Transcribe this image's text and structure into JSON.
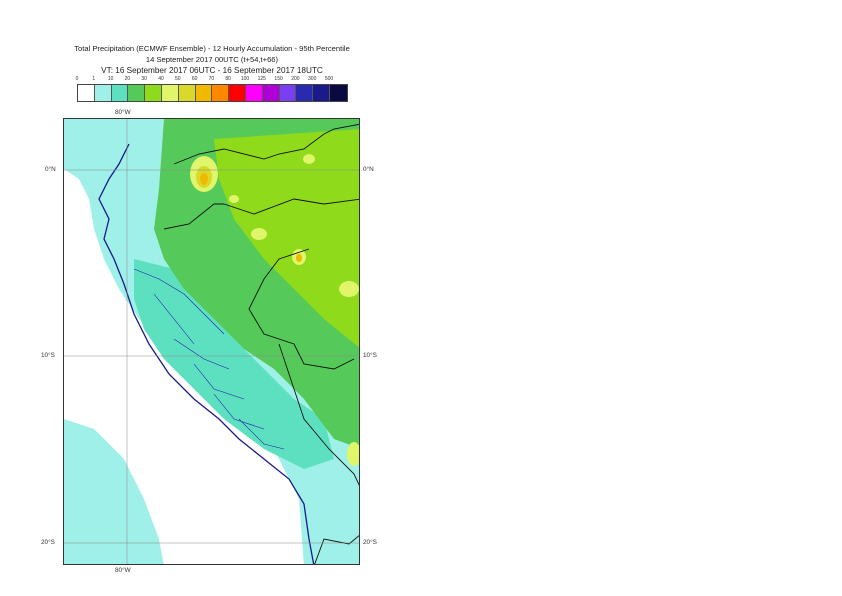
{
  "title": {
    "line1": "Total Precipitation (ECMWF Ensemble) - 12 Hourly Accumulation - 95th Percentile",
    "line2": "14 September 2017 00UTC (t+54,t+66)",
    "line3": "VT: 16 September 2017 06UTC - 16 September 2017 18UTC"
  },
  "legend": {
    "ticks": [
      "0",
      "1",
      "10",
      "20",
      "30",
      "40",
      "50",
      "60",
      "70",
      "80",
      "100",
      "125",
      "150",
      "200",
      "300",
      "500"
    ],
    "colors": [
      "#ffffff",
      "#9ff0e8",
      "#5de0c0",
      "#55c95a",
      "#8fda1a",
      "#e0f56a",
      "#d8d92a",
      "#f0b800",
      "#ff8800",
      "#ff0000",
      "#ff00ff",
      "#b000d8",
      "#7a3ff0",
      "#2a2ab0",
      "#1a1a8a",
      "#0a0a40"
    ]
  },
  "axes": {
    "lon_top": "80°W",
    "lon_bottom": "80°W",
    "lat_0_left": "0°N",
    "lat_0_right": "0°N",
    "lat_10_left": "10°S",
    "lat_10_right": "10°S",
    "lat_20_left": "20°S",
    "lat_20_right": "20°S"
  }
}
